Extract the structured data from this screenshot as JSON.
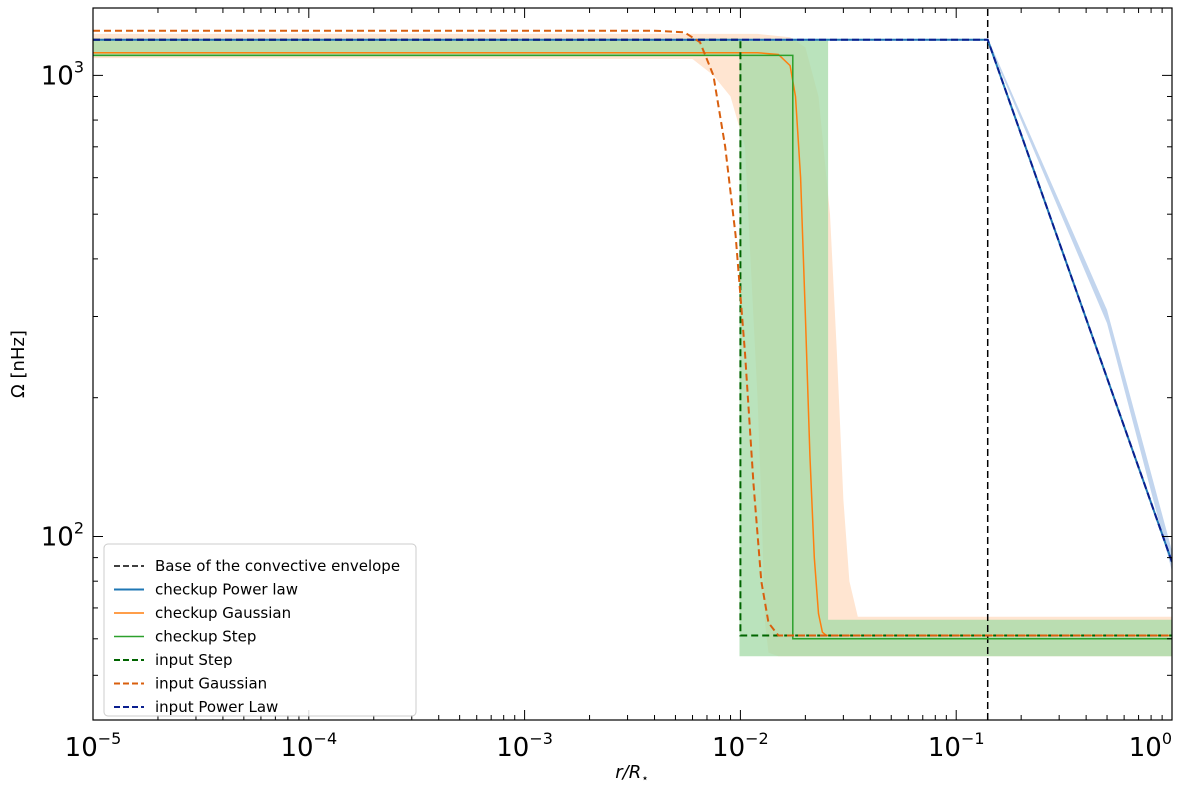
{
  "chart_data": {
    "type": "line",
    "xlabel": "r/R",
    "xlabel_sub": "⋆",
    "ylabel": "Ω [nHz]",
    "xscale": "log",
    "yscale": "log",
    "xlim": [
      1e-05,
      1
    ],
    "ylim": [
      40,
      1400
    ],
    "grid": false,
    "legend_position": "lower-left",
    "x_ticks": [
      {
        "base": "10",
        "exp": "−5",
        "value": 1e-05
      },
      {
        "base": "10",
        "exp": "−4",
        "value": 0.0001
      },
      {
        "base": "10",
        "exp": "−3",
        "value": 0.001
      },
      {
        "base": "10",
        "exp": "−2",
        "value": 0.01
      },
      {
        "base": "10",
        "exp": "−1",
        "value": 0.1
      },
      {
        "base": "10",
        "exp": "0",
        "value": 1
      }
    ],
    "y_ticks": [
      {
        "base": "10",
        "exp": "2",
        "value": 100
      },
      {
        "base": "10",
        "exp": "3",
        "value": 1000
      }
    ],
    "bands": [
      {
        "color": "#ffdcc2",
        "lower": [
          [
            1e-05,
            1090
          ],
          [
            0.006,
            1085
          ],
          [
            0.0075,
            1000
          ],
          [
            0.009,
            900
          ],
          [
            0.0105,
            700
          ],
          [
            0.011,
            450
          ],
          [
            0.012,
            200
          ],
          [
            0.0125,
            120
          ],
          [
            0.013,
            65
          ],
          [
            0.0135,
            56
          ],
          [
            0.015,
            55
          ],
          [
            1,
            55
          ]
        ],
        "upper": [
          [
            1e-05,
            1230
          ],
          [
            0.012,
            1230
          ],
          [
            0.017,
            1210
          ],
          [
            0.02,
            1150
          ],
          [
            0.023,
            900
          ],
          [
            0.026,
            500
          ],
          [
            0.028,
            250
          ],
          [
            0.03,
            120
          ],
          [
            0.032,
            80
          ],
          [
            0.035,
            67
          ],
          [
            1,
            67
          ]
        ]
      },
      {
        "color": "#a3d9a5",
        "lower": [
          [
            1e-05,
            1100
          ],
          [
            0.0099,
            1100
          ],
          [
            0.0099,
            55
          ],
          [
            1,
            55
          ]
        ],
        "upper": [
          [
            1e-05,
            1200
          ],
          [
            0.0255,
            1200
          ],
          [
            0.0255,
            66
          ],
          [
            1,
            66
          ]
        ]
      },
      {
        "color": "#aec7e8",
        "lower": [
          [
            0.14,
            1185
          ],
          [
            0.5,
            290
          ],
          [
            1,
            84
          ]
        ],
        "upper": [
          [
            0.14,
            1205
          ],
          [
            0.5,
            310
          ],
          [
            1,
            93
          ]
        ]
      }
    ],
    "series": [
      {
        "name": "Base of the convective envelope",
        "color": "#000000",
        "dash": true,
        "width": 1.5,
        "points": [
          [
            0.14,
            40
          ],
          [
            0.14,
            1400
          ]
        ]
      },
      {
        "name": "checkup Power law",
        "color": "#1f77b4",
        "dash": false,
        "width": 2,
        "points": [
          [
            1e-05,
            1195
          ],
          [
            0.14,
            1195
          ],
          [
            1,
            88
          ]
        ]
      },
      {
        "name": "checkup Gaussian",
        "color": "#ff7f0e",
        "dash": false,
        "width": 1.5,
        "points": [
          [
            1e-05,
            1120
          ],
          [
            0.012,
            1120
          ],
          [
            0.015,
            1110
          ],
          [
            0.017,
            1050
          ],
          [
            0.018,
            900
          ],
          [
            0.019,
            600
          ],
          [
            0.02,
            300
          ],
          [
            0.021,
            150
          ],
          [
            0.022,
            90
          ],
          [
            0.023,
            68
          ],
          [
            0.024,
            62
          ],
          [
            0.025,
            61
          ],
          [
            1,
            61
          ]
        ]
      },
      {
        "name": "checkup Step",
        "color": "#2ca02c",
        "dash": false,
        "width": 1.5,
        "points": [
          [
            1e-05,
            1105
          ],
          [
            0.0175,
            1105
          ],
          [
            0.0175,
            60
          ],
          [
            1,
            60
          ]
        ]
      },
      {
        "name": "input Step",
        "color": "#006400",
        "dash": true,
        "width": 2,
        "points": [
          [
            1e-05,
            1195
          ],
          [
            0.01,
            1195
          ],
          [
            0.01,
            61
          ],
          [
            1,
            61
          ]
        ]
      },
      {
        "name": "input Gaussian",
        "color": "#d95f0e",
        "dash": true,
        "width": 2,
        "points": [
          [
            1e-05,
            1250
          ],
          [
            0.004,
            1250
          ],
          [
            0.0055,
            1240
          ],
          [
            0.0065,
            1180
          ],
          [
            0.0075,
            1000
          ],
          [
            0.0085,
            700
          ],
          [
            0.0095,
            450
          ],
          [
            0.0105,
            250
          ],
          [
            0.0115,
            130
          ],
          [
            0.0125,
            80
          ],
          [
            0.0135,
            65
          ],
          [
            0.015,
            61
          ],
          [
            1,
            61
          ]
        ]
      },
      {
        "name": "input Power Law",
        "color": "#0a1f8f",
        "dash": true,
        "width": 2,
        "points": [
          [
            1e-05,
            1195
          ],
          [
            0.14,
            1195
          ],
          [
            1,
            88
          ]
        ]
      }
    ]
  }
}
